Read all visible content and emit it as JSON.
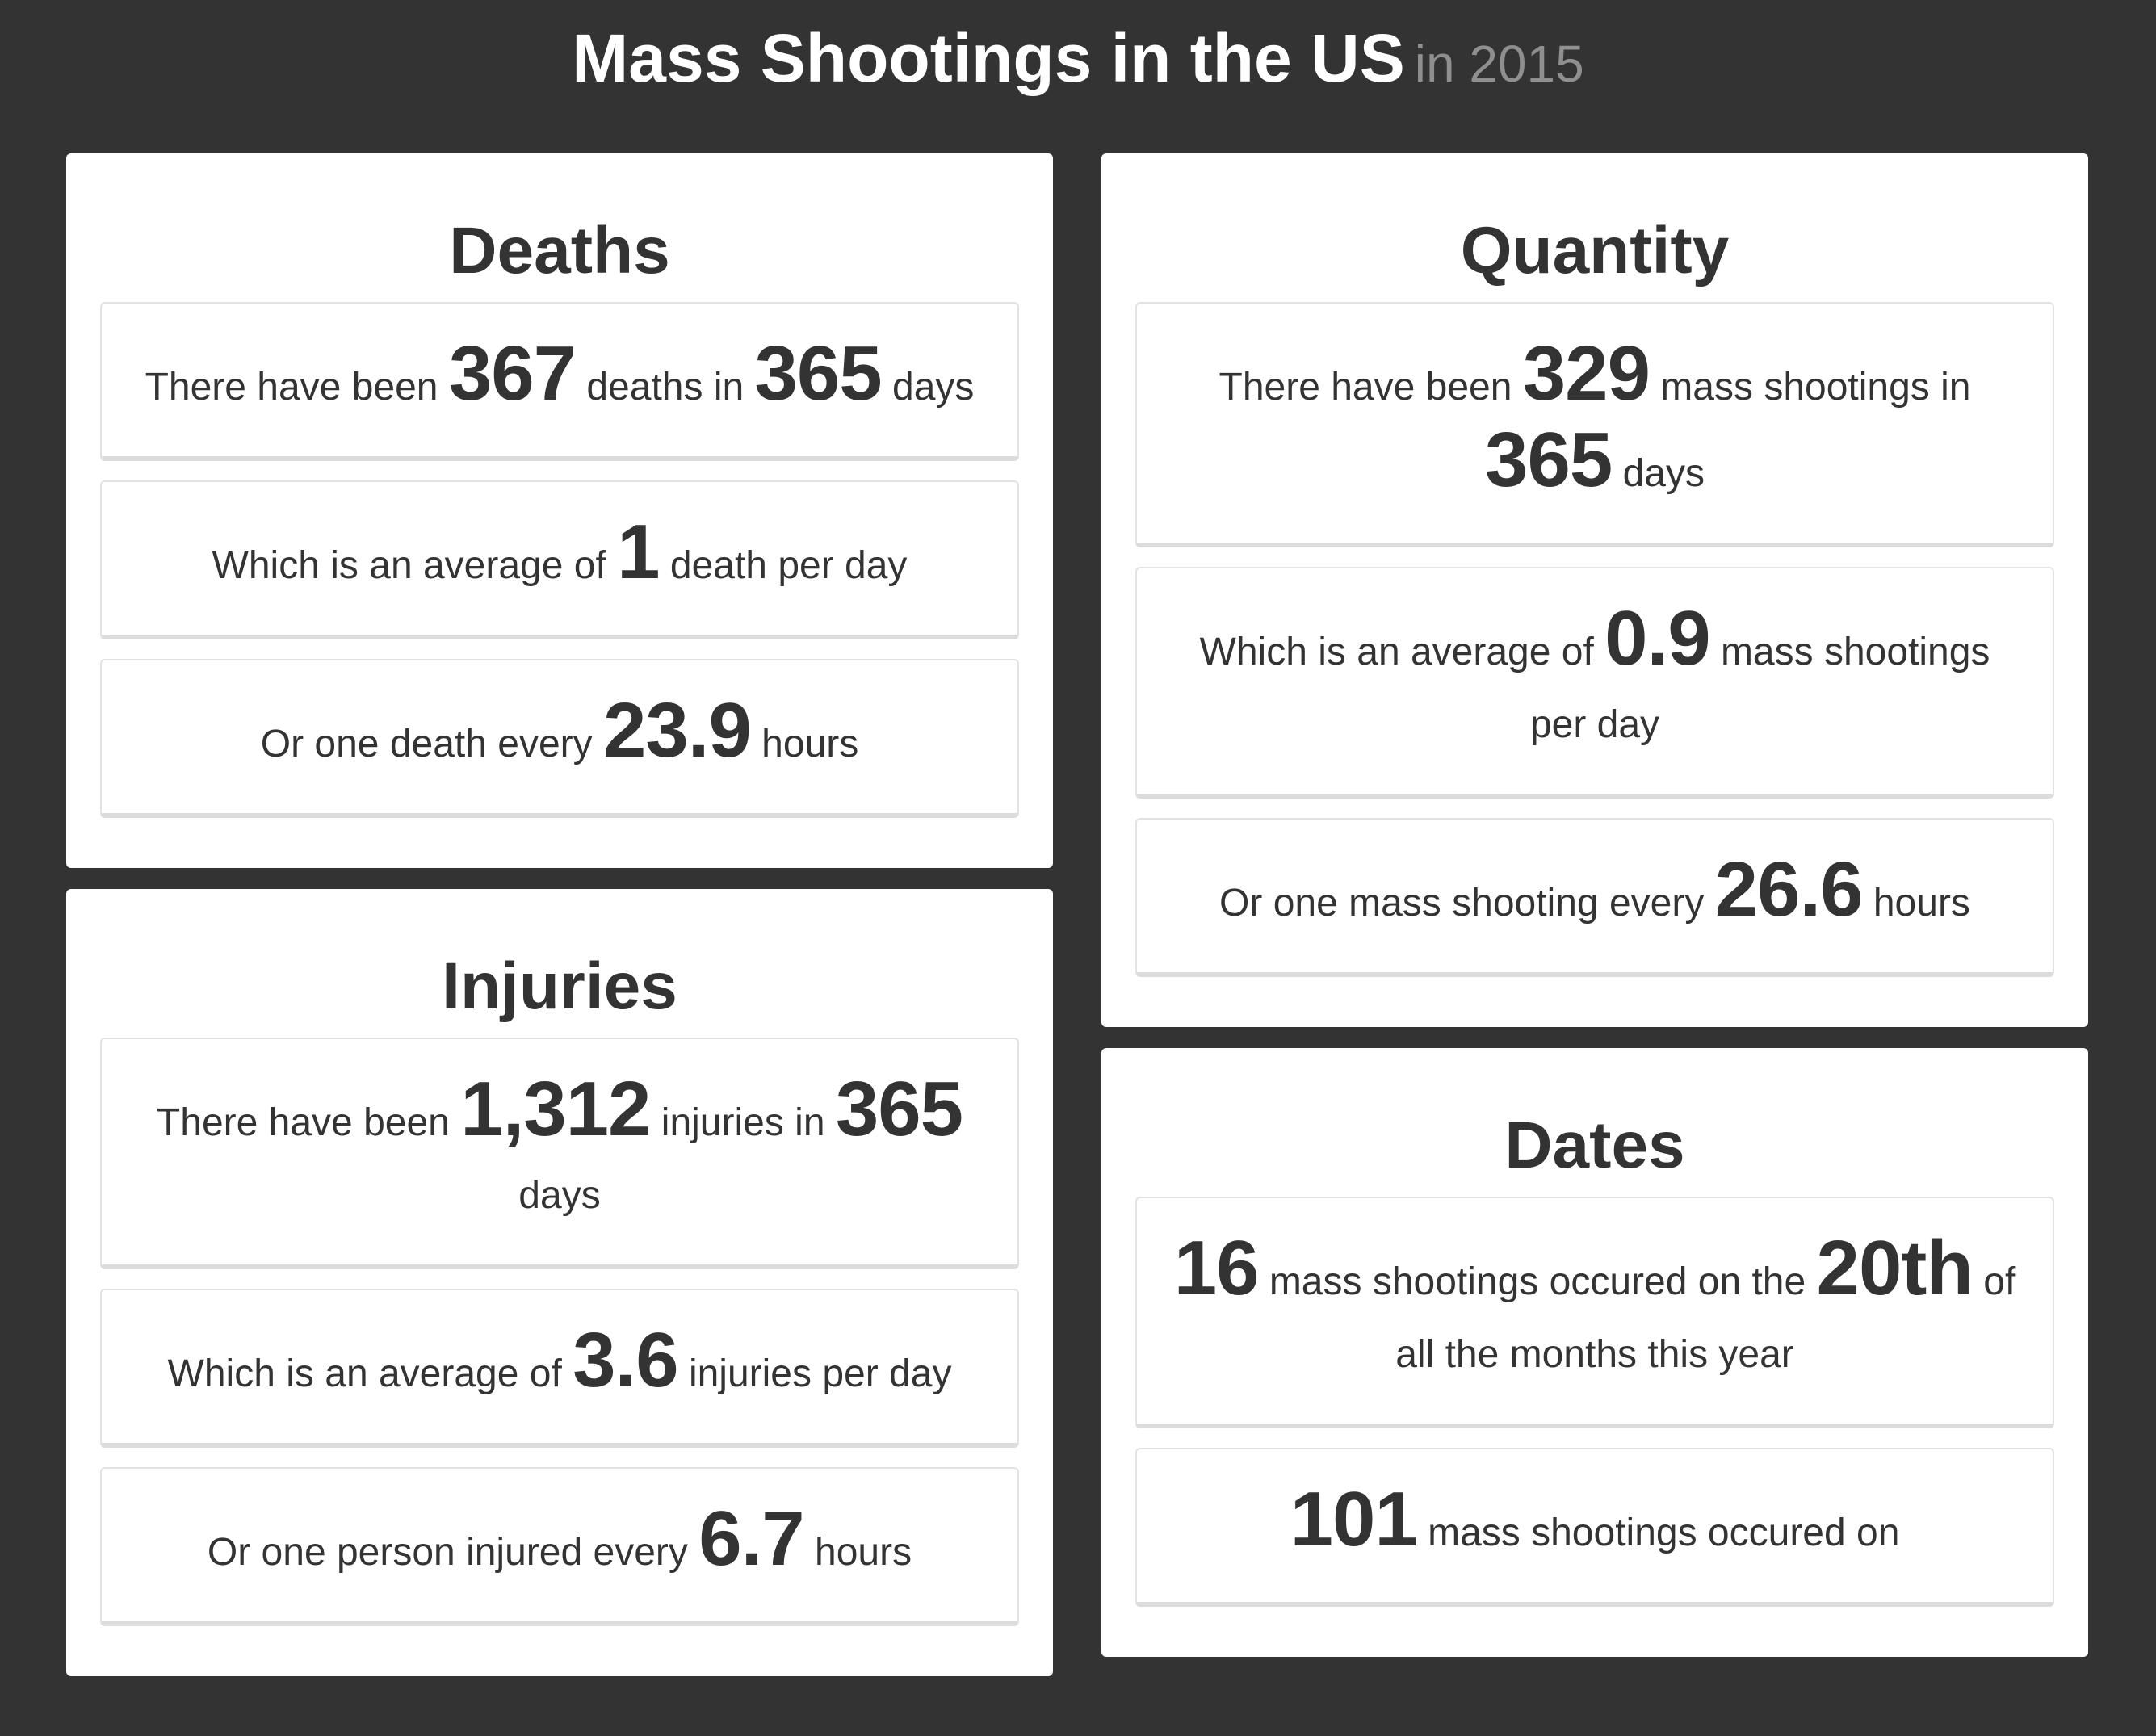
{
  "header": {
    "title": "Mass Shootings in the US",
    "year": "in 2015"
  },
  "deaths": {
    "title": "Deaths",
    "stat1": {
      "pre": "There have been",
      "n1": "367",
      "mid": "deaths in",
      "n2": "365",
      "post": "days"
    },
    "stat2": {
      "pre": "Which is an average of",
      "n1": "1",
      "post": "death per day"
    },
    "stat3": {
      "pre": "Or one death every",
      "n1": "23.9",
      "post": "hours"
    }
  },
  "injuries": {
    "title": "Injuries",
    "stat1": {
      "pre": "There have been",
      "n1": "1,312",
      "mid": "injuries in",
      "n2": "365",
      "post": "days"
    },
    "stat2": {
      "pre": "Which is an average of",
      "n1": "3.6",
      "post": "injuries per day"
    },
    "stat3": {
      "pre": "Or one person injured every",
      "n1": "6.7",
      "post": "hours"
    }
  },
  "quantity": {
    "title": "Quantity",
    "stat1": {
      "pre": "There have been",
      "n1": "329",
      "mid": "mass shootings in",
      "n2": "365",
      "post": "days"
    },
    "stat2": {
      "pre": "Which is an average of",
      "n1": "0.9",
      "post": "mass shootings per day"
    },
    "stat3": {
      "pre": "Or one mass shooting every",
      "n1": "26.6",
      "post": "hours"
    }
  },
  "dates": {
    "title": "Dates",
    "stat1": {
      "n1": "16",
      "mid": "mass shootings occured on the",
      "n2": "20th",
      "post": "of all the months this year"
    },
    "stat2": {
      "n1": "101",
      "mid": "mass shootings occured on"
    }
  }
}
